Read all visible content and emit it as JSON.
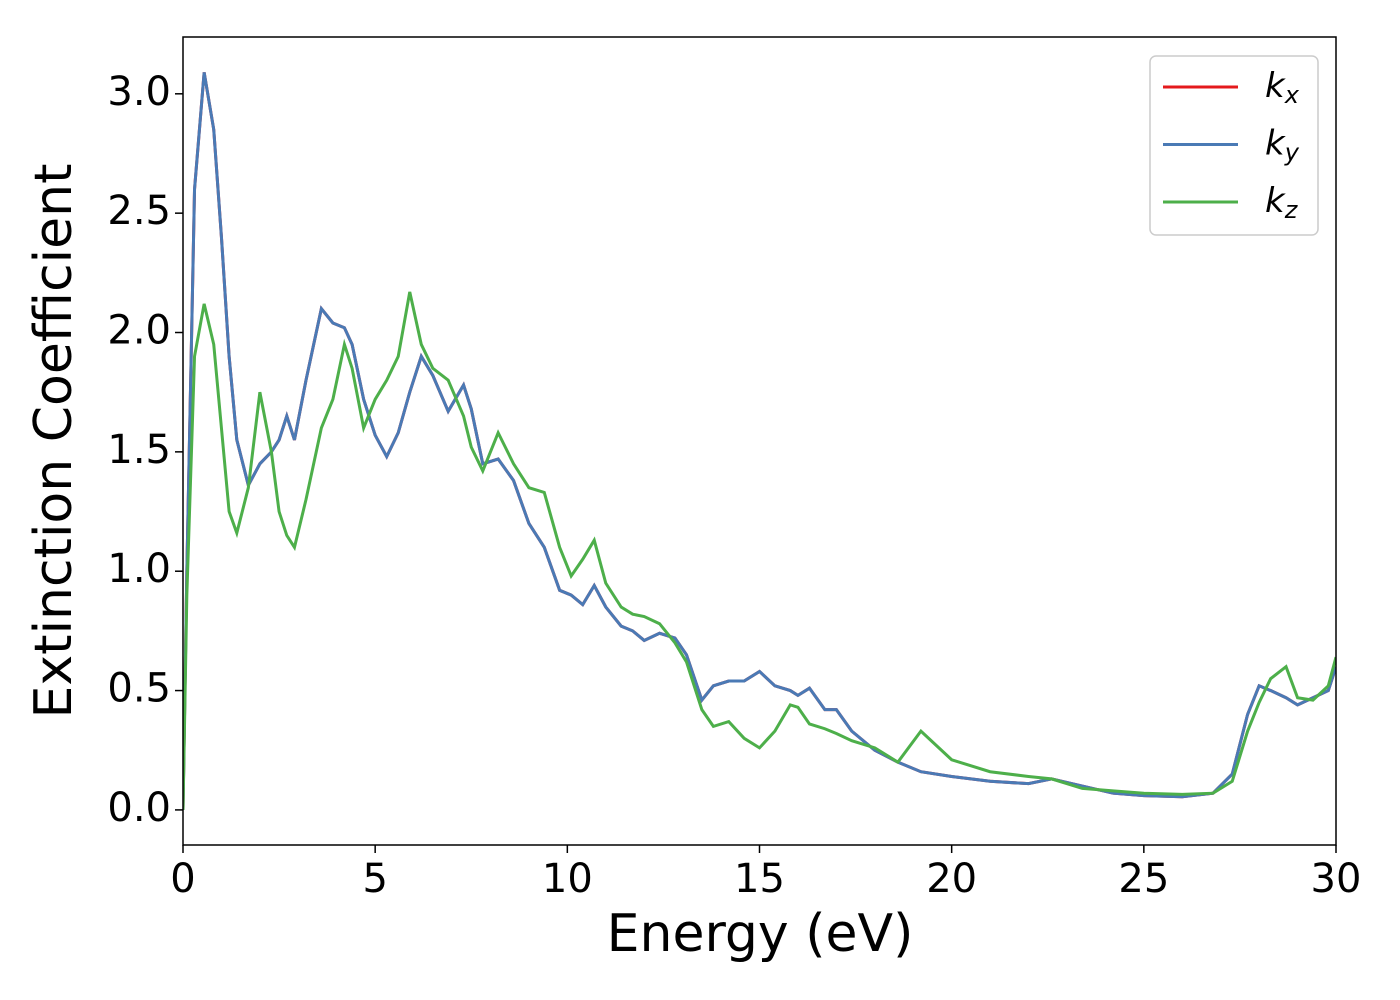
{
  "chart_data": {
    "type": "line",
    "xlabel": "Energy (eV)",
    "ylabel": "Extinction Coefficient",
    "x": [
      0,
      0.1,
      0.3,
      0.55,
      0.8,
      1.0,
      1.2,
      1.4,
      1.7,
      2.0,
      2.3,
      2.5,
      2.7,
      2.9,
      3.2,
      3.6,
      3.9,
      4.2,
      4.4,
      4.7,
      5.0,
      5.3,
      5.6,
      5.9,
      6.2,
      6.5,
      6.9,
      7.3,
      7.5,
      7.8,
      8.2,
      8.6,
      9.0,
      9.4,
      9.8,
      10.1,
      10.4,
      10.7,
      11.0,
      11.4,
      11.7,
      12.0,
      12.4,
      12.8,
      13.1,
      13.5,
      13.8,
      14.2,
      14.6,
      15.0,
      15.4,
      15.8,
      16.0,
      16.3,
      16.7,
      17.0,
      17.4,
      18.0,
      18.6,
      19.2,
      20.0,
      21.0,
      22.0,
      22.6,
      23.4,
      24.2,
      25.0,
      26.0,
      26.8,
      27.3,
      27.7,
      28.0,
      28.3,
      28.7,
      29.0,
      29.4,
      29.8,
      30.0
    ],
    "series": [
      {
        "name": "kx",
        "color": "#e41a1c",
        "values": [
          0,
          1.0,
          2.6,
          3.09,
          2.85,
          2.4,
          1.9,
          1.55,
          1.36,
          1.45,
          1.5,
          1.55,
          1.65,
          1.55,
          1.8,
          2.1,
          2.04,
          2.02,
          1.95,
          1.72,
          1.57,
          1.48,
          1.58,
          1.75,
          1.9,
          1.82,
          1.67,
          1.78,
          1.68,
          1.45,
          1.47,
          1.38,
          1.2,
          1.1,
          0.92,
          0.9,
          0.86,
          0.94,
          0.85,
          0.77,
          0.75,
          0.71,
          0.74,
          0.72,
          0.65,
          0.46,
          0.52,
          0.54,
          0.54,
          0.58,
          0.52,
          0.5,
          0.48,
          0.51,
          0.42,
          0.42,
          0.33,
          0.25,
          0.2,
          0.16,
          0.14,
          0.12,
          0.11,
          0.13,
          0.1,
          0.07,
          0.06,
          0.055,
          0.07,
          0.15,
          0.4,
          0.52,
          0.5,
          0.47,
          0.44,
          0.47,
          0.5,
          0.6
        ]
      },
      {
        "name": "ky",
        "color": "#4a7ab5",
        "values": [
          0,
          1.0,
          2.6,
          3.09,
          2.85,
          2.4,
          1.9,
          1.55,
          1.36,
          1.45,
          1.5,
          1.55,
          1.65,
          1.55,
          1.8,
          2.1,
          2.04,
          2.02,
          1.95,
          1.72,
          1.57,
          1.48,
          1.58,
          1.75,
          1.9,
          1.82,
          1.67,
          1.78,
          1.68,
          1.45,
          1.47,
          1.38,
          1.2,
          1.1,
          0.92,
          0.9,
          0.86,
          0.94,
          0.85,
          0.77,
          0.75,
          0.71,
          0.74,
          0.72,
          0.65,
          0.46,
          0.52,
          0.54,
          0.54,
          0.58,
          0.52,
          0.5,
          0.48,
          0.51,
          0.42,
          0.42,
          0.33,
          0.25,
          0.2,
          0.16,
          0.14,
          0.12,
          0.11,
          0.13,
          0.1,
          0.07,
          0.06,
          0.055,
          0.07,
          0.15,
          0.4,
          0.52,
          0.5,
          0.47,
          0.44,
          0.47,
          0.5,
          0.6
        ]
      },
      {
        "name": "kz",
        "color": "#4daf4a",
        "values": [
          0,
          0.9,
          1.9,
          2.12,
          1.95,
          1.6,
          1.25,
          1.16,
          1.35,
          1.75,
          1.5,
          1.25,
          1.15,
          1.1,
          1.3,
          1.6,
          1.72,
          1.95,
          1.85,
          1.6,
          1.72,
          1.8,
          1.9,
          2.17,
          1.95,
          1.85,
          1.8,
          1.65,
          1.52,
          1.42,
          1.58,
          1.45,
          1.35,
          1.33,
          1.1,
          0.98,
          1.05,
          1.13,
          0.95,
          0.85,
          0.82,
          0.81,
          0.78,
          0.7,
          0.62,
          0.42,
          0.35,
          0.37,
          0.3,
          0.26,
          0.33,
          0.44,
          0.43,
          0.36,
          0.34,
          0.32,
          0.29,
          0.26,
          0.2,
          0.33,
          0.21,
          0.16,
          0.14,
          0.13,
          0.09,
          0.08,
          0.07,
          0.065,
          0.07,
          0.12,
          0.33,
          0.45,
          0.55,
          0.6,
          0.47,
          0.46,
          0.52,
          0.64
        ]
      }
    ],
    "xlim": [
      0,
      30
    ],
    "xticks": [
      0,
      5,
      10,
      15,
      20,
      25,
      30
    ],
    "ylim": [
      -0.147,
      3.238
    ],
    "yticks": [
      {
        "value": 0,
        "label": "0.0"
      },
      0.5,
      {
        "value": 1,
        "label": "1.0"
      },
      1.5,
      {
        "value": 2,
        "label": "2.0"
      },
      2.5,
      {
        "value": 3,
        "label": "3.0"
      }
    ],
    "legend": "upper right"
  }
}
